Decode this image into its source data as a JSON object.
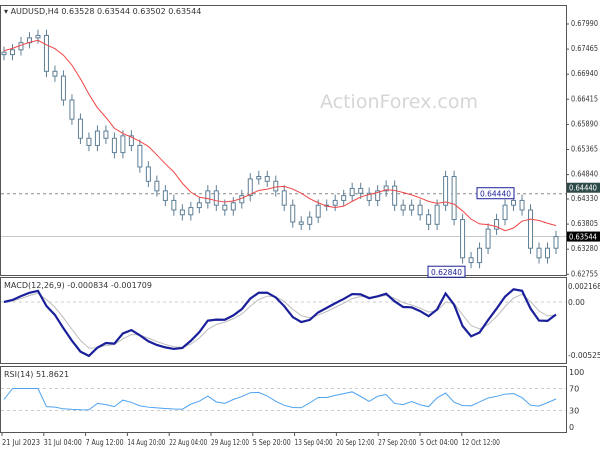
{
  "header": {
    "symbol": "AUDUSD,H4",
    "ohlc": "0.63528 0.63544 0.63502 0.63544"
  },
  "watermark": "ActionForex.com",
  "colors": {
    "candle": "#5f7f96",
    "ma": "#f04545",
    "macd": "#1a1f9a",
    "signal": "#bdbdbd",
    "rsi": "#4da3f0",
    "frame": "#555555"
  },
  "chart_data": [
    {
      "type": "candlestick",
      "title": "AUDUSD,H4",
      "ylim": [
        0.6264,
        0.6815
      ],
      "yticks": [
        "0.67990",
        "0.67465",
        "0.66940",
        "0.66415",
        "0.65890",
        "0.65365",
        "0.64840",
        "0.64330",
        "0.63805",
        "0.63280",
        "0.62755"
      ],
      "current_price": "0.63544",
      "level_line": "0.64440",
      "annotations": [
        {
          "label": "0.64440",
          "value": 0.6444
        },
        {
          "label": "0.62840",
          "value": 0.6284
        }
      ],
      "xticks": [
        "21 Jul 2023",
        "31 Jul 04:00",
        "7 Aug 12:00",
        "14 Aug 20:00",
        "22 Aug 04:00",
        "29 Aug 12:00",
        "5 Sep 20:00",
        "13 Sep 04:00",
        "20 Sep 12:00",
        "27 Sep 20:00",
        "5 Oct 04:00",
        "12 Oct 12:00"
      ],
      "closes": [
        0.6735,
        0.6745,
        0.676,
        0.677,
        0.6775,
        0.67,
        0.669,
        0.664,
        0.66,
        0.656,
        0.6545,
        0.6575,
        0.656,
        0.653,
        0.6565,
        0.6545,
        0.65,
        0.647,
        0.645,
        0.643,
        0.641,
        0.64,
        0.6415,
        0.6425,
        0.645,
        0.642,
        0.641,
        0.6425,
        0.644,
        0.6475,
        0.648,
        0.647,
        0.645,
        0.642,
        0.6385,
        0.638,
        0.6395,
        0.642,
        0.642,
        0.643,
        0.644,
        0.6455,
        0.6445,
        0.643,
        0.645,
        0.646,
        0.642,
        0.641,
        0.642,
        0.64,
        0.638,
        0.642,
        0.648,
        0.639,
        0.631,
        0.63,
        0.633,
        0.637,
        0.639,
        0.642,
        0.643,
        0.641,
        0.633,
        0.631,
        0.633,
        0.63544
      ]
    },
    {
      "type": "line",
      "title": "MACD(12,26,9) -0.000834 -0.001709",
      "ylim": [
        -0.00525,
        0.002168
      ],
      "yticks": [
        "0.002168",
        "0.00",
        "-0.00525"
      ]
    },
    {
      "type": "line",
      "title": "RSI(14) 51.8621",
      "ylim": [
        0,
        100
      ],
      "yticks": [
        "100",
        "70",
        "30",
        "0"
      ]
    }
  ]
}
